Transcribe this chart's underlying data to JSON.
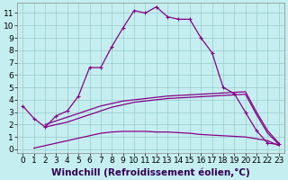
{
  "background_color": "#c5eef0",
  "line_color": "#880088",
  "grid_color": "#99cccc",
  "xlim": [
    -0.5,
    23.5
  ],
  "ylim": [
    -0.3,
    11.8
  ],
  "xticks": [
    0,
    1,
    2,
    3,
    4,
    5,
    6,
    7,
    8,
    9,
    10,
    11,
    12,
    13,
    14,
    15,
    16,
    17,
    18,
    19,
    20,
    21,
    22,
    23
  ],
  "yticks": [
    0,
    1,
    2,
    3,
    4,
    5,
    6,
    7,
    8,
    9,
    10,
    11
  ],
  "line1_x": [
    0,
    1,
    2,
    3,
    4,
    5,
    6,
    7,
    8,
    9,
    10,
    11,
    12,
    13,
    14,
    15,
    16,
    17,
    18,
    19,
    20,
    21,
    22,
    23
  ],
  "line1_y": [
    3.5,
    2.5,
    1.8,
    2.7,
    3.1,
    4.3,
    6.6,
    6.6,
    8.3,
    9.8,
    11.2,
    11.0,
    11.5,
    10.7,
    10.5,
    10.5,
    9.0,
    7.8,
    5.0,
    4.5,
    3.0,
    1.5,
    0.5,
    0.4
  ],
  "line2_x": [
    2,
    3,
    4,
    5,
    6,
    7,
    8,
    9,
    10,
    11,
    12,
    13,
    14,
    15,
    16,
    17,
    18,
    19,
    20,
    21,
    22,
    23
  ],
  "line2_y": [
    2.0,
    2.3,
    2.6,
    2.9,
    3.2,
    3.5,
    3.7,
    3.9,
    4.0,
    4.1,
    4.2,
    4.3,
    4.35,
    4.4,
    4.45,
    4.5,
    4.55,
    4.6,
    4.65,
    3.0,
    1.5,
    0.5
  ],
  "line3_x": [
    1,
    2,
    3,
    4,
    5,
    6,
    7,
    8,
    9,
    10,
    11,
    12,
    13,
    14,
    15,
    16,
    17,
    18,
    19,
    20,
    21,
    22,
    23
  ],
  "line3_y": [
    0.1,
    0.3,
    0.5,
    0.7,
    0.9,
    1.1,
    1.3,
    1.4,
    1.45,
    1.45,
    1.45,
    1.4,
    1.4,
    1.35,
    1.3,
    1.2,
    1.15,
    1.1,
    1.05,
    1.0,
    0.85,
    0.7,
    0.3
  ],
  "line4_x": [
    2,
    3,
    4,
    5,
    6,
    7,
    8,
    9,
    10,
    11,
    12,
    13,
    14,
    15,
    16,
    17,
    18,
    19,
    20,
    21,
    22,
    23
  ],
  "line4_y": [
    1.8,
    2.0,
    2.2,
    2.5,
    2.8,
    3.1,
    3.4,
    3.6,
    3.8,
    3.9,
    4.0,
    4.1,
    4.15,
    4.2,
    4.25,
    4.3,
    4.35,
    4.4,
    4.45,
    2.8,
    1.3,
    0.4
  ],
  "xlabel": "Windchill (Refroidissement éolien,°C)",
  "xlabel_color": "#330055",
  "tick_fontsize": 6.5,
  "xlabel_fontsize": 7.5
}
